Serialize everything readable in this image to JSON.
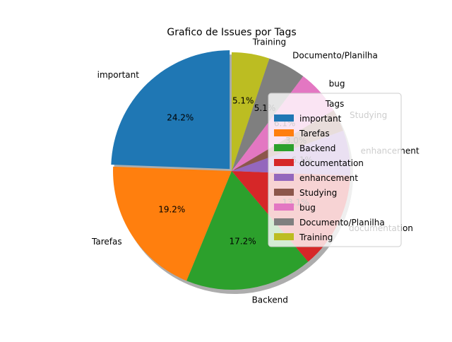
{
  "chart_data": {
    "type": "pie",
    "title": "Grafico de Issues por Tags",
    "labels": [
      "important",
      "Tarefas",
      "Backend",
      "documentation",
      "enhancement",
      "Studying",
      "bug",
      "Documento/Planilha",
      "Training"
    ],
    "values": [
      24.2,
      19.2,
      17.2,
      13.1,
      6.1,
      3.0,
      6.1,
      5.1,
      5.1
    ],
    "pct_labels": [
      "24.2%",
      "19.2%",
      "17.2%",
      "13.1%",
      "6.1%",
      "3.0%",
      "6.1%",
      "5.1%",
      "5.1%"
    ],
    "colors": [
      "#1f77b4",
      "#ff7f0e",
      "#2ca02c",
      "#d62728",
      "#9467bd",
      "#8c564b",
      "#e377c2",
      "#7f7f7f",
      "#bcbd22"
    ],
    "start_angle_deg": 90,
    "direction": "counterclockwise",
    "explode_first": true,
    "shadow": true,
    "legend": {
      "title": "Tags",
      "placement": "right",
      "entries": [
        "important",
        "Tarefas",
        "Backend",
        "documentation",
        "enhancement",
        "Studying",
        "bug",
        "Documento/Planilha",
        "Training"
      ]
    }
  }
}
